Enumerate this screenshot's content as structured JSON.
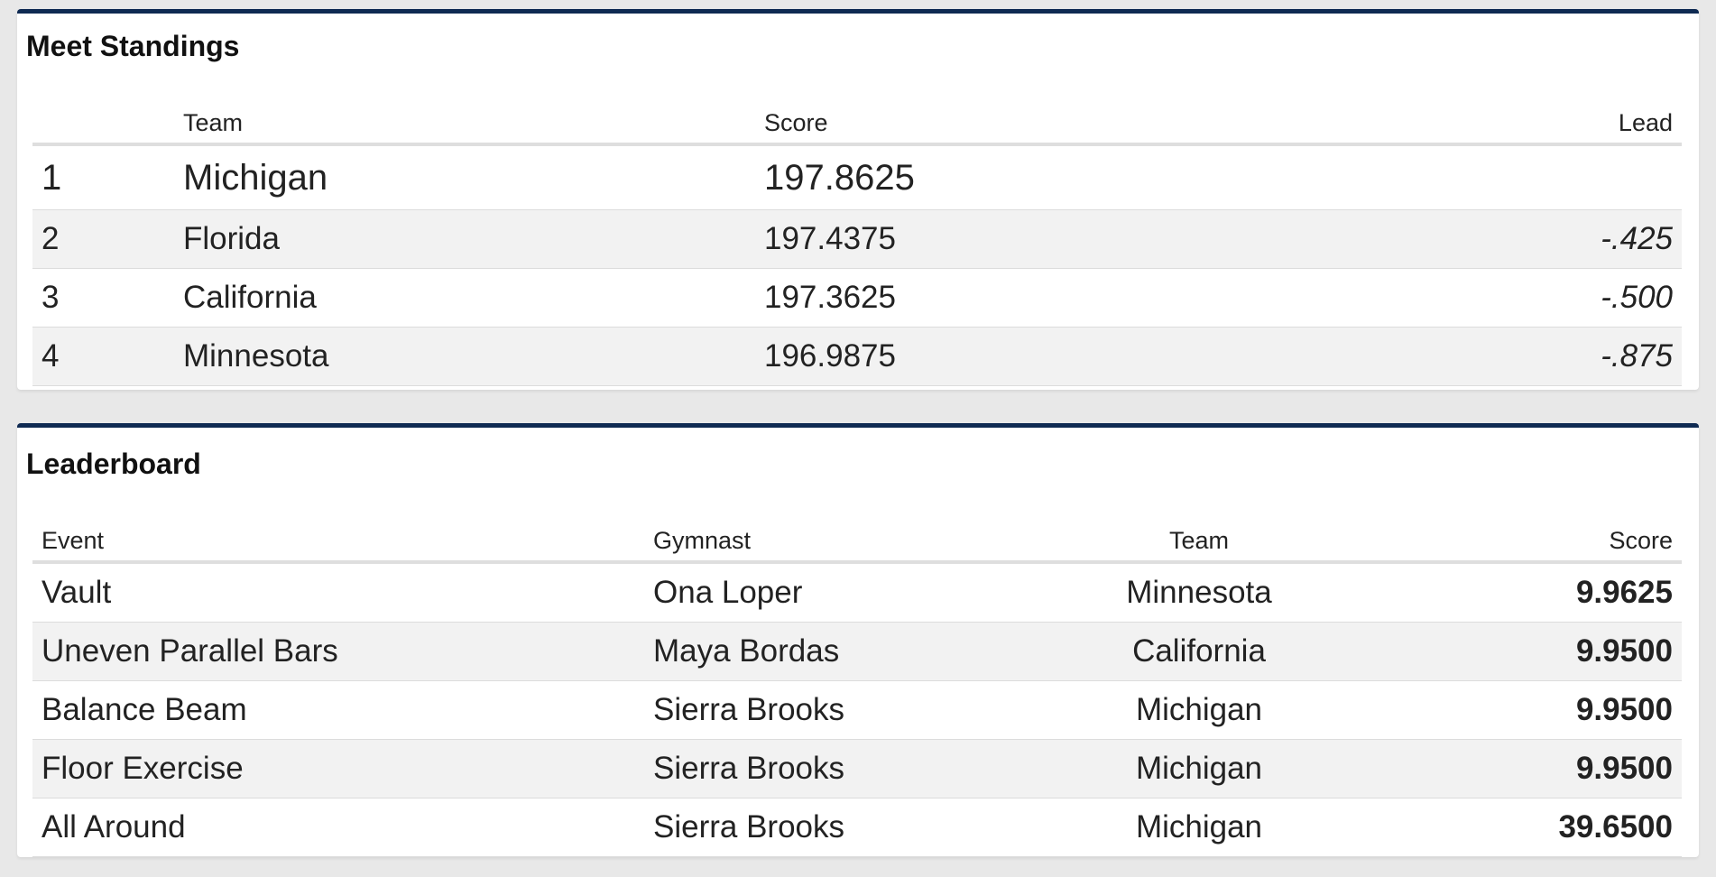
{
  "standings": {
    "title": "Meet Standings",
    "headers": {
      "rank": "",
      "team": "Team",
      "score": "Score",
      "lead": "Lead"
    },
    "rows": [
      {
        "rank": "1",
        "team": "Michigan",
        "score": "197.8625",
        "lead": ""
      },
      {
        "rank": "2",
        "team": "Florida",
        "score": "197.4375",
        "lead": "-.425"
      },
      {
        "rank": "3",
        "team": "California",
        "score": "197.3625",
        "lead": "-.500"
      },
      {
        "rank": "4",
        "team": "Minnesota",
        "score": "196.9875",
        "lead": "-.875"
      }
    ]
  },
  "leaderboard": {
    "title": "Leaderboard",
    "headers": {
      "event": "Event",
      "gymnast": "Gymnast",
      "team": "Team",
      "score": "Score"
    },
    "rows": [
      {
        "event": "Vault",
        "gymnast": "Ona Loper",
        "team": "Minnesota",
        "score": "9.9625"
      },
      {
        "event": "Uneven Parallel Bars",
        "gymnast": "Maya Bordas",
        "team": "California",
        "score": "9.9500"
      },
      {
        "event": "Balance Beam",
        "gymnast": "Sierra Brooks",
        "team": "Michigan",
        "score": "9.9500"
      },
      {
        "event": "Floor Exercise",
        "gymnast": "Sierra Brooks",
        "team": "Michigan",
        "score": "9.9500"
      },
      {
        "event": "All Around",
        "gymnast": "Sierra Brooks",
        "team": "Michigan",
        "score": "39.6500"
      }
    ]
  },
  "colors": {
    "accent": "#0f2a52",
    "background": "#e8e8e8",
    "row_alt": "#f2f2f2"
  }
}
